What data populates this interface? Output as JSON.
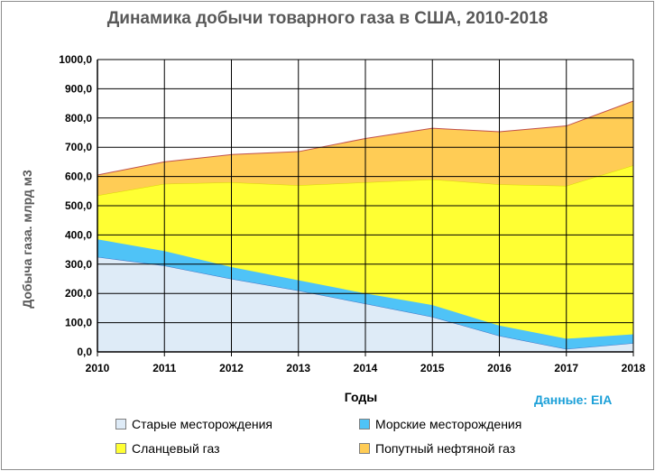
{
  "chart_data": {
    "type": "area",
    "title": "Динамика добычи товарного газа в США, 2010-2018",
    "xlabel": "Годы",
    "ylabel": "Добыча газа. млрд м3",
    "source": "Данные: EIA",
    "stacked": true,
    "x": [
      "2010",
      "2011",
      "2012",
      "2013",
      "2014",
      "2015",
      "2016",
      "2017",
      "2018"
    ],
    "ylim": [
      0,
      1000
    ],
    "yticks": [
      "0,0",
      "100,0",
      "200,0",
      "300,0",
      "400,0",
      "500,0",
      "600,0",
      "700,0",
      "800,0",
      "900,0",
      "1000,0"
    ],
    "grid": true,
    "legend_position": "bottom",
    "series": [
      {
        "name": "Старые месторождения",
        "color": "#deebf7",
        "line": "#4472c4",
        "values": [
          325,
          295,
          250,
          210,
          165,
          120,
          55,
          10,
          30
        ]
      },
      {
        "name": "Морские месторождения",
        "color": "#4fc3f7",
        "line": "#4fc3f7",
        "values": [
          60,
          50,
          40,
          35,
          35,
          40,
          35,
          35,
          30
        ]
      },
      {
        "name": "Сланцевый газ",
        "color": "#ffff33",
        "line": "#d9d900",
        "values": [
          150,
          230,
          290,
          325,
          380,
          430,
          483,
          523,
          578
        ]
      },
      {
        "name": "Попутный нефтяной газ",
        "color": "#ffcc55",
        "line": "#c0504d",
        "values": [
          70,
          75,
          95,
          115,
          150,
          175,
          180,
          205,
          220
        ]
      }
    ]
  }
}
